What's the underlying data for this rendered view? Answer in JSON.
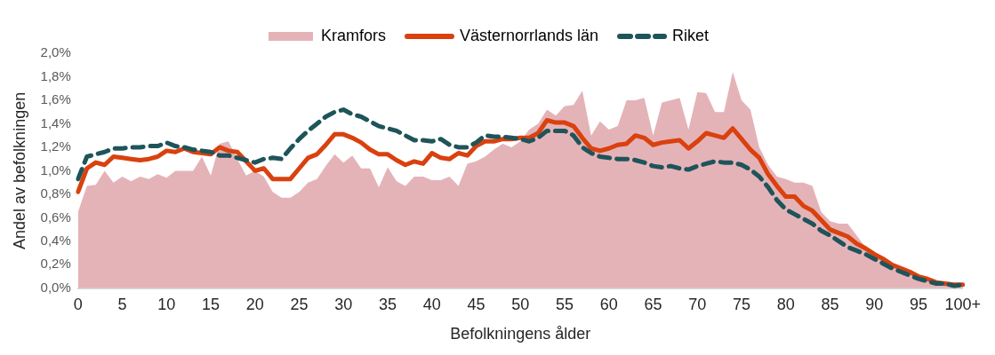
{
  "chart_data": {
    "type": "line",
    "xlabel": "Befolkningens ålder",
    "ylabel": "Andel av befolkningen",
    "categories": [
      "0",
      null,
      null,
      null,
      null,
      "5",
      null,
      null,
      null,
      null,
      "10",
      null,
      null,
      null,
      null,
      "15",
      null,
      null,
      null,
      null,
      "20",
      null,
      null,
      null,
      null,
      "25",
      null,
      null,
      null,
      null,
      "30",
      null,
      null,
      null,
      null,
      "35",
      null,
      null,
      null,
      null,
      "40",
      null,
      null,
      null,
      null,
      "45",
      null,
      null,
      null,
      null,
      "50",
      null,
      null,
      null,
      null,
      "55",
      null,
      null,
      null,
      null,
      "60",
      null,
      null,
      null,
      null,
      "65",
      null,
      null,
      null,
      null,
      "70",
      null,
      null,
      null,
      null,
      "75",
      null,
      null,
      null,
      null,
      "80",
      null,
      null,
      null,
      null,
      "85",
      null,
      null,
      null,
      null,
      "90",
      null,
      null,
      null,
      null,
      "95",
      null,
      null,
      null,
      null,
      "100+"
    ],
    "series": [
      {
        "name": "Kramfors",
        "type": "area",
        "color": "#e4b3b8",
        "values": [
          0.65,
          0.87,
          0.88,
          1.0,
          0.9,
          0.95,
          0.91,
          0.95,
          0.93,
          0.97,
          0.94,
          1.0,
          1.0,
          1.0,
          1.12,
          0.96,
          1.23,
          1.25,
          1.1,
          0.96,
          1.0,
          0.95,
          0.82,
          0.77,
          0.77,
          0.82,
          0.9,
          0.93,
          1.04,
          1.14,
          1.07,
          1.13,
          1.02,
          1.02,
          0.86,
          1.03,
          0.91,
          0.87,
          0.95,
          0.95,
          0.92,
          0.92,
          0.95,
          0.87,
          1.06,
          1.08,
          1.12,
          1.18,
          1.23,
          1.2,
          1.25,
          1.35,
          1.4,
          1.52,
          1.47,
          1.55,
          1.56,
          1.68,
          1.3,
          1.42,
          1.35,
          1.38,
          1.6,
          1.6,
          1.62,
          1.3,
          1.58,
          1.6,
          1.62,
          1.35,
          1.67,
          1.66,
          1.5,
          1.5,
          1.84,
          1.6,
          1.52,
          1.2,
          1.05,
          0.95,
          0.93,
          0.9,
          0.9,
          0.87,
          0.65,
          0.57,
          0.55,
          0.55,
          0.45,
          0.35,
          0.31,
          0.27,
          0.22,
          0.17,
          0.13,
          0.1,
          0.07,
          0.05,
          0.04,
          0.02,
          0.03
        ]
      },
      {
        "name": "Västernorrlands län",
        "type": "line",
        "line_style": "solid",
        "color": "#d9410e",
        "values": [
          0.82,
          1.02,
          1.07,
          1.05,
          1.12,
          1.11,
          1.1,
          1.09,
          1.1,
          1.12,
          1.17,
          1.16,
          1.19,
          1.16,
          1.15,
          1.14,
          1.2,
          1.17,
          1.16,
          1.08,
          1.0,
          1.02,
          0.93,
          0.93,
          0.93,
          1.02,
          1.11,
          1.14,
          1.22,
          1.31,
          1.31,
          1.28,
          1.24,
          1.18,
          1.14,
          1.14,
          1.09,
          1.05,
          1.08,
          1.06,
          1.15,
          1.11,
          1.1,
          1.15,
          1.13,
          1.21,
          1.25,
          1.25,
          1.27,
          1.27,
          1.28,
          1.28,
          1.32,
          1.43,
          1.41,
          1.41,
          1.38,
          1.28,
          1.19,
          1.17,
          1.19,
          1.22,
          1.23,
          1.3,
          1.28,
          1.22,
          1.24,
          1.25,
          1.26,
          1.19,
          1.25,
          1.32,
          1.3,
          1.28,
          1.36,
          1.27,
          1.18,
          1.11,
          0.97,
          0.87,
          0.78,
          0.78,
          0.7,
          0.66,
          0.58,
          0.5,
          0.47,
          0.44,
          0.38,
          0.34,
          0.29,
          0.25,
          0.2,
          0.17,
          0.14,
          0.1,
          0.08,
          0.05,
          0.04,
          0.03,
          0.03
        ]
      },
      {
        "name": "Riket",
        "type": "line",
        "line_style": "dashed",
        "color": "#1e545a",
        "values": [
          0.93,
          1.12,
          1.14,
          1.16,
          1.19,
          1.19,
          1.2,
          1.2,
          1.21,
          1.21,
          1.24,
          1.21,
          1.2,
          1.18,
          1.17,
          1.16,
          1.13,
          1.13,
          1.11,
          1.09,
          1.07,
          1.1,
          1.11,
          1.1,
          1.19,
          1.27,
          1.34,
          1.4,
          1.46,
          1.5,
          1.52,
          1.48,
          1.46,
          1.42,
          1.38,
          1.36,
          1.34,
          1.3,
          1.26,
          1.26,
          1.25,
          1.27,
          1.22,
          1.2,
          1.2,
          1.24,
          1.3,
          1.29,
          1.29,
          1.28,
          1.27,
          1.25,
          1.28,
          1.34,
          1.34,
          1.34,
          1.3,
          1.2,
          1.15,
          1.12,
          1.11,
          1.1,
          1.1,
          1.09,
          1.07,
          1.04,
          1.03,
          1.04,
          1.02,
          1.01,
          1.04,
          1.06,
          1.08,
          1.07,
          1.07,
          1.05,
          1.01,
          0.95,
          0.86,
          0.75,
          0.67,
          0.63,
          0.59,
          0.55,
          0.49,
          0.45,
          0.4,
          0.35,
          0.32,
          0.29,
          0.25,
          0.21,
          0.17,
          0.14,
          0.11,
          0.08,
          0.06,
          0.04,
          0.04,
          0.02,
          0.03
        ]
      }
    ],
    "ylim": [
      0,
      2
    ],
    "yticks": [
      {
        "value": 0,
        "label": "0,0%"
      },
      {
        "value": 0.2,
        "label": "0,2%"
      },
      {
        "value": 0.4,
        "label": "0,4%"
      },
      {
        "value": 0.6,
        "label": "0,6%"
      },
      {
        "value": 0.8,
        "label": "0,8%"
      },
      {
        "value": 1.0,
        "label": "1,0%"
      },
      {
        "value": 1.2,
        "label": "1,2%"
      },
      {
        "value": 1.4,
        "label": "1,4%"
      },
      {
        "value": 1.6,
        "label": "1,6%"
      },
      {
        "value": 1.8,
        "label": "1,8%"
      },
      {
        "value": 2.0,
        "label": "2,0%"
      }
    ],
    "grid": false,
    "legend": "top",
    "marker": "none"
  }
}
